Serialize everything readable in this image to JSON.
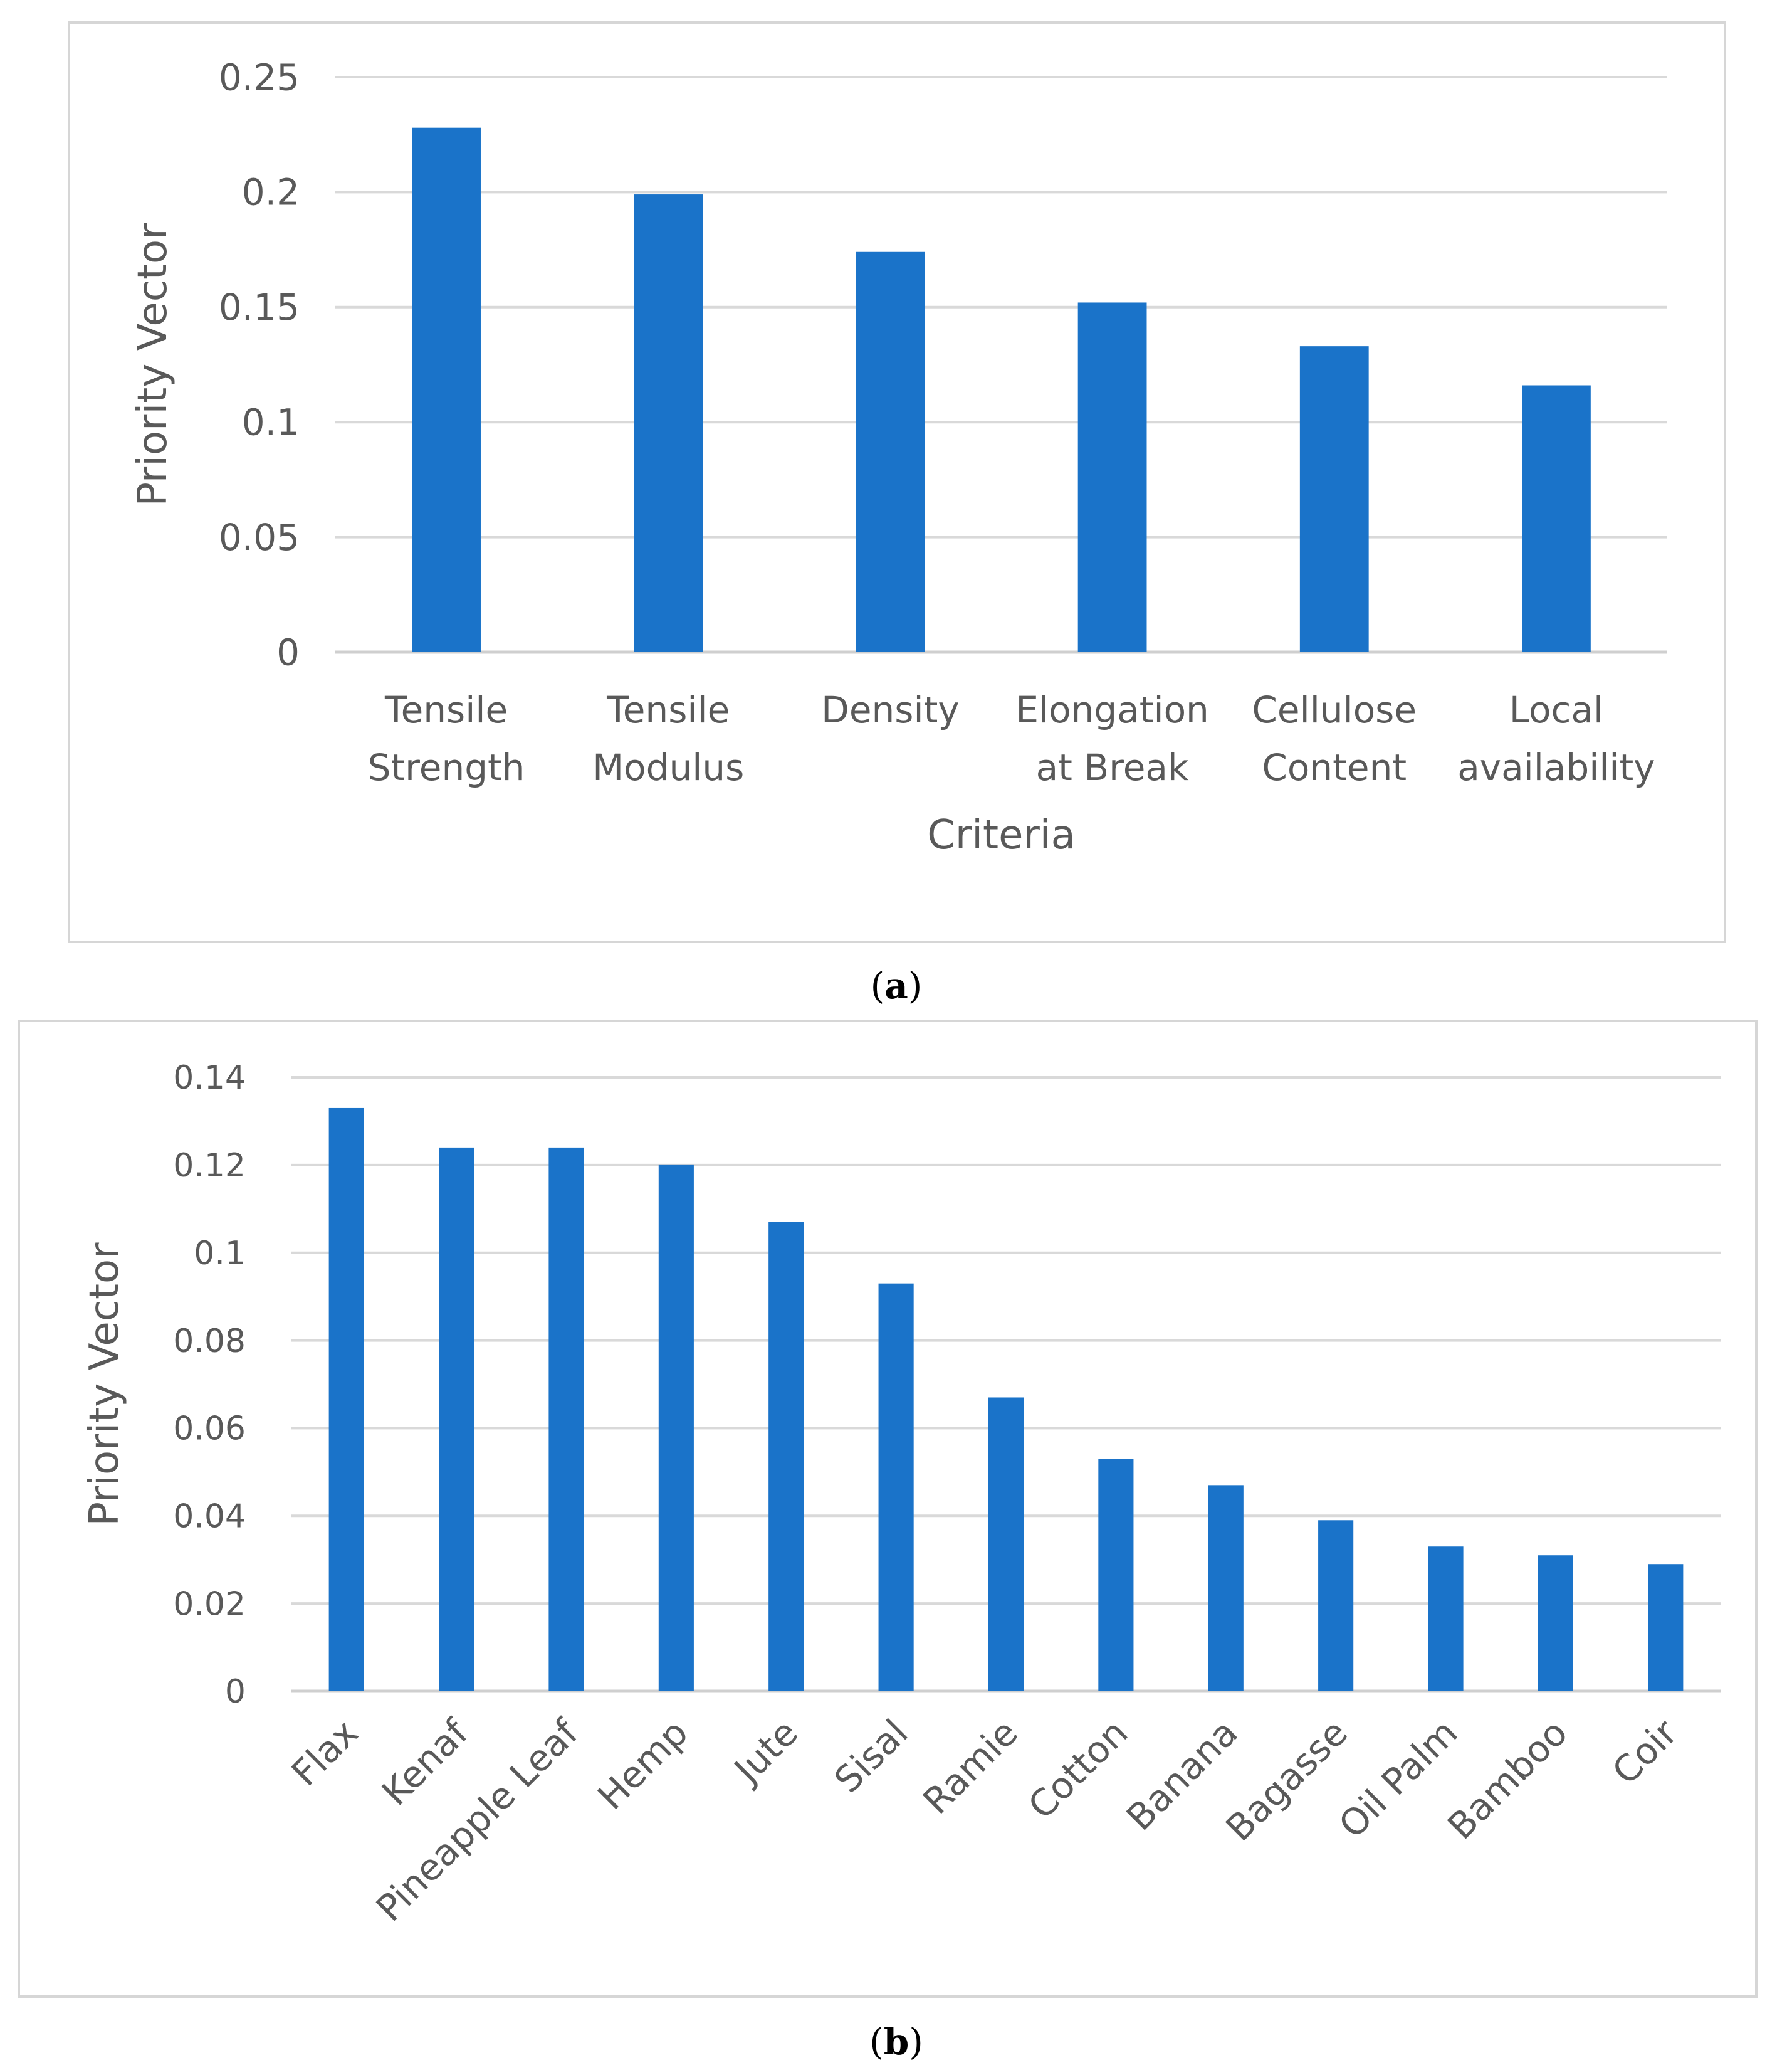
{
  "chart_data": [
    {
      "panel": "a",
      "type": "bar",
      "title": "",
      "xlabel": "Criteria",
      "ylabel": "Priority Vector",
      "ylim": [
        0,
        0.25
      ],
      "yticks": [
        "0",
        "0.05",
        "0.1",
        "0.15",
        "0.2",
        "0.25"
      ],
      "grid": true,
      "categories": [
        [
          "Tensile",
          "Strength"
        ],
        [
          "Tensile",
          "Modulus"
        ],
        [
          "Density"
        ],
        [
          "Elongation",
          "at Break"
        ],
        [
          "Cellulose",
          "Content"
        ],
        [
          "Local",
          "availability"
        ]
      ],
      "values": [
        0.228,
        0.199,
        0.174,
        0.152,
        0.133,
        0.116
      ],
      "bar_color": "#1a73c9"
    },
    {
      "panel": "b",
      "type": "bar",
      "title": "",
      "xlabel": "",
      "ylabel": "Priority Vector",
      "ylim": [
        0,
        0.14
      ],
      "yticks": [
        "0",
        "0.02",
        "0.04",
        "0.06",
        "0.08",
        "0.1",
        "0.12",
        "0.14"
      ],
      "grid": true,
      "categories": [
        "Flax",
        "Kenaf",
        "Pineapple Leaf",
        "Hemp",
        "Jute",
        "Sisal",
        "Ramie",
        "Cotton",
        "Banana",
        "Bagasse",
        "Oil Palm",
        "Bamboo",
        "Coir"
      ],
      "values": [
        0.133,
        0.124,
        0.124,
        0.12,
        0.107,
        0.093,
        0.067,
        0.053,
        0.047,
        0.039,
        0.033,
        0.031,
        0.029
      ],
      "bar_color": "#1a73c9"
    }
  ],
  "captions": {
    "a": {
      "open": "(",
      "letter": "a",
      "close": ")"
    },
    "b": {
      "open": "(",
      "letter": "b",
      "close": ")"
    }
  }
}
